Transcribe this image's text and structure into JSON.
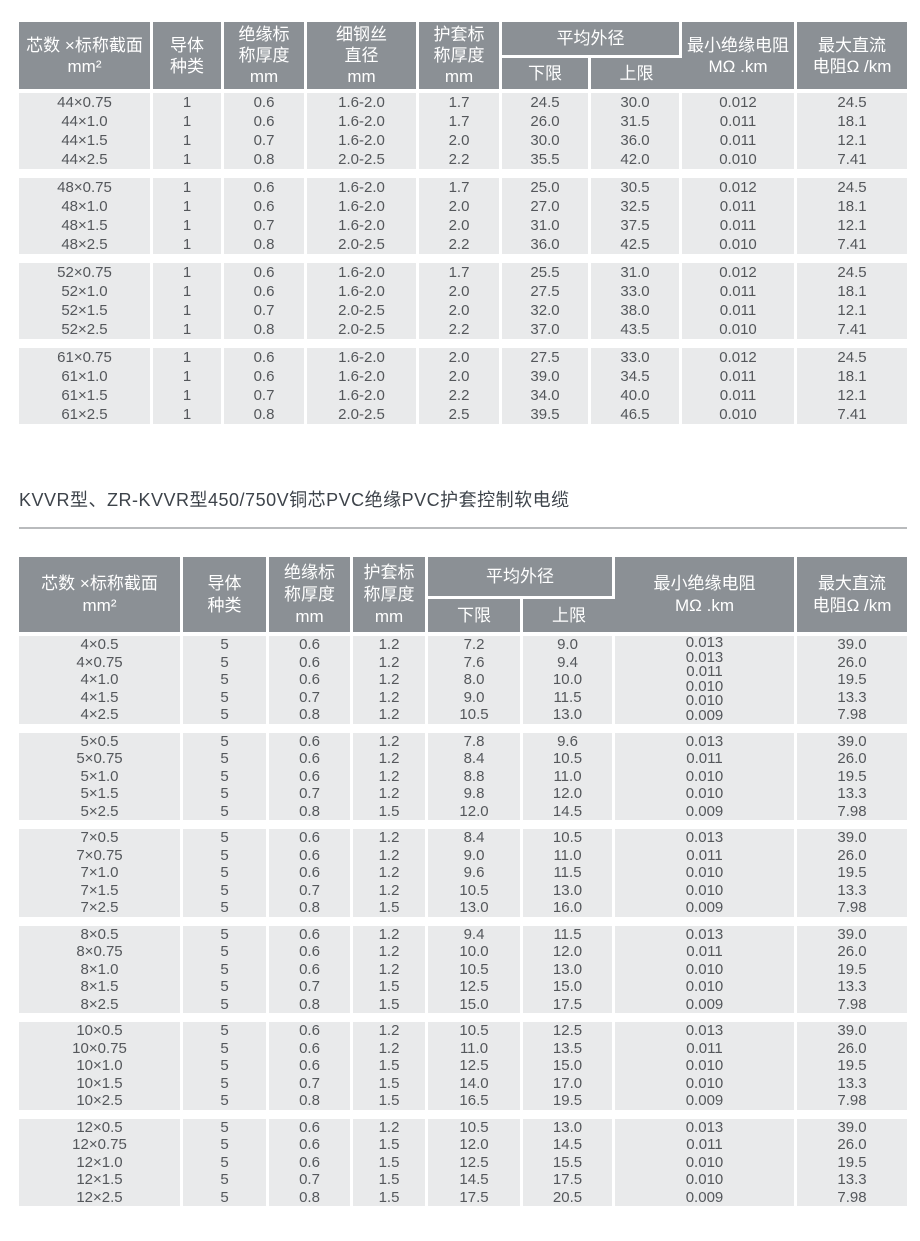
{
  "colors": {
    "header_bg": "#8b9095",
    "header_text": "#ffffff",
    "row_bg": "#e9eaeb",
    "row_text": "#54575b",
    "title_text": "#3d434a",
    "divider": "#b9bbbd",
    "page_bg": "#ffffff"
  },
  "section_title": "KVVR型、ZR-KVVR型450/750V铜芯PVC绝缘PVC护套控制软电缆",
  "table1": {
    "header": {
      "spec": "芯数 ×标称截面\nmm²",
      "conductor": "导体\n种类",
      "insulation_thickness": "绝缘标\n称厚度\nmm",
      "steel_wire": "细钢丝\n直径\nmm",
      "sheath_thickness": "护套标\n称厚度\nmm",
      "avg_od": "平均外径",
      "lower": "下限",
      "upper": "上限",
      "min_insulation": "最小绝缘电阻\nMΩ .km",
      "max_dc": "最大直流\n电阻Ω /km"
    },
    "groups": [
      {
        "rows": [
          [
            "44×0.75",
            "1",
            "0.6",
            "1.6-2.0",
            "1.7",
            "24.5",
            "30.0",
            "0.012",
            "24.5"
          ],
          [
            "44×1.0",
            "1",
            "0.6",
            "1.6-2.0",
            "1.7",
            "26.0",
            "31.5",
            "0.011",
            "18.1"
          ],
          [
            "44×1.5",
            "1",
            "0.7",
            "1.6-2.0",
            "2.0",
            "30.0",
            "36.0",
            "0.011",
            "12.1"
          ],
          [
            "44×2.5",
            "1",
            "0.8",
            "2.0-2.5",
            "2.2",
            "35.5",
            "42.0",
            "0.010",
            "7.41"
          ]
        ]
      },
      {
        "rows": [
          [
            "48×0.75",
            "1",
            "0.6",
            "1.6-2.0",
            "1.7",
            "25.0",
            "30.5",
            "0.012",
            "24.5"
          ],
          [
            "48×1.0",
            "1",
            "0.6",
            "1.6-2.0",
            "2.0",
            "27.0",
            "32.5",
            "0.011",
            "18.1"
          ],
          [
            "48×1.5",
            "1",
            "0.7",
            "1.6-2.0",
            "2.0",
            "31.0",
            "37.5",
            "0.011",
            "12.1"
          ],
          [
            "48×2.5",
            "1",
            "0.8",
            "2.0-2.5",
            "2.2",
            "36.0",
            "42.5",
            "0.010",
            "7.41"
          ]
        ]
      },
      {
        "rows": [
          [
            "52×0.75",
            "1",
            "0.6",
            "1.6-2.0",
            "1.7",
            "25.5",
            "31.0",
            "0.012",
            "24.5"
          ],
          [
            "52×1.0",
            "1",
            "0.6",
            "1.6-2.0",
            "2.0",
            "27.5",
            "33.0",
            "0.011",
            "18.1"
          ],
          [
            "52×1.5",
            "1",
            "0.7",
            "2.0-2.5",
            "2.0",
            "32.0",
            "38.0",
            "0.011",
            "12.1"
          ],
          [
            "52×2.5",
            "1",
            "0.8",
            "2.0-2.5",
            "2.2",
            "37.0",
            "43.5",
            "0.010",
            "7.41"
          ]
        ]
      },
      {
        "rows": [
          [
            "61×0.75",
            "1",
            "0.6",
            "1.6-2.0",
            "2.0",
            "27.5",
            "33.0",
            "0.012",
            "24.5"
          ],
          [
            "61×1.0",
            "1",
            "0.6",
            "1.6-2.0",
            "2.0",
            "39.0",
            "34.5",
            "0.011",
            "18.1"
          ],
          [
            "61×1.5",
            "1",
            "0.7",
            "1.6-2.0",
            "2.2",
            "34.0",
            "40.0",
            "0.011",
            "12.1"
          ],
          [
            "61×2.5",
            "1",
            "0.8",
            "2.0-2.5",
            "2.5",
            "39.5",
            "46.5",
            "0.010",
            "7.41"
          ]
        ]
      }
    ]
  },
  "table2": {
    "header": {
      "spec": "芯数 ×标称截面\nmm²",
      "conductor": "导体\n种类",
      "insulation_thickness": "绝缘标\n称厚度\nmm",
      "sheath_thickness": "护套标\n称厚度\nmm",
      "avg_od": "平均外径",
      "lower": "下限",
      "upper": "上限",
      "min_insulation": "最小绝缘电阻\nMΩ .km",
      "max_dc": "最大直流\n电阻Ω /km"
    },
    "groups": [
      {
        "overlap_col": 6,
        "overlap_values": [
          "0.013",
          "0.013",
          "0.011",
          "0.010",
          "0.010",
          "0.009"
        ],
        "rows": [
          [
            "4×0.5",
            "5",
            "0.6",
            "1.2",
            "7.2",
            "9.0",
            "39.0"
          ],
          [
            "4×0.75",
            "5",
            "0.6",
            "1.2",
            "7.6",
            "9.4",
            "26.0"
          ],
          [
            "4×1.0",
            "5",
            "0.6",
            "1.2",
            "8.0",
            "10.0",
            "19.5"
          ],
          [
            "4×1.5",
            "5",
            "0.7",
            "1.2",
            "9.0",
            "11.5",
            "13.3"
          ],
          [
            "4×2.5",
            "5",
            "0.8",
            "1.2",
            "10.5",
            "13.0",
            "7.98"
          ]
        ]
      },
      {
        "rows": [
          [
            "5×0.5",
            "5",
            "0.6",
            "1.2",
            "7.8",
            "9.6",
            "0.013",
            "39.0"
          ],
          [
            "5×0.75",
            "5",
            "0.6",
            "1.2",
            "8.4",
            "10.5",
            "0.011",
            "26.0"
          ],
          [
            "5×1.0",
            "5",
            "0.6",
            "1.2",
            "8.8",
            "11.0",
            "0.010",
            "19.5"
          ],
          [
            "5×1.5",
            "5",
            "0.7",
            "1.2",
            "9.8",
            "12.0",
            "0.010",
            "13.3"
          ],
          [
            "5×2.5",
            "5",
            "0.8",
            "1.5",
            "12.0",
            "14.5",
            "0.009",
            "7.98"
          ]
        ]
      },
      {
        "rows": [
          [
            "7×0.5",
            "5",
            "0.6",
            "1.2",
            "8.4",
            "10.5",
            "0.013",
            "39.0"
          ],
          [
            "7×0.75",
            "5",
            "0.6",
            "1.2",
            "9.0",
            "11.0",
            "0.011",
            "26.0"
          ],
          [
            "7×1.0",
            "5",
            "0.6",
            "1.2",
            "9.6",
            "11.5",
            "0.010",
            "19.5"
          ],
          [
            "7×1.5",
            "5",
            "0.7",
            "1.2",
            "10.5",
            "13.0",
            "0.010",
            "13.3"
          ],
          [
            "7×2.5",
            "5",
            "0.8",
            "1.5",
            "13.0",
            "16.0",
            "0.009",
            "7.98"
          ]
        ]
      },
      {
        "rows": [
          [
            "8×0.5",
            "5",
            "0.6",
            "1.2",
            "9.4",
            "11.5",
            "0.013",
            "39.0"
          ],
          [
            "8×0.75",
            "5",
            "0.6",
            "1.2",
            "10.0",
            "12.0",
            "0.011",
            "26.0"
          ],
          [
            "8×1.0",
            "5",
            "0.6",
            "1.2",
            "10.5",
            "13.0",
            "0.010",
            "19.5"
          ],
          [
            "8×1.5",
            "5",
            "0.7",
            "1.5",
            "12.5",
            "15.0",
            "0.010",
            "13.3"
          ],
          [
            "8×2.5",
            "5",
            "0.8",
            "1.5",
            "15.0",
            "17.5",
            "0.009",
            "7.98"
          ]
        ]
      },
      {
        "rows": [
          [
            "10×0.5",
            "5",
            "0.6",
            "1.2",
            "10.5",
            "12.5",
            "0.013",
            "39.0"
          ],
          [
            "10×0.75",
            "5",
            "0.6",
            "1.2",
            "11.0",
            "13.5",
            "0.011",
            "26.0"
          ],
          [
            "10×1.0",
            "5",
            "0.6",
            "1.5",
            "12.5",
            "15.0",
            "0.010",
            "19.5"
          ],
          [
            "10×1.5",
            "5",
            "0.7",
            "1.5",
            "14.0",
            "17.0",
            "0.010",
            "13.3"
          ],
          [
            "10×2.5",
            "5",
            "0.8",
            "1.5",
            "16.5",
            "19.5",
            "0.009",
            "7.98"
          ]
        ]
      },
      {
        "rows": [
          [
            "12×0.5",
            "5",
            "0.6",
            "1.2",
            "10.5",
            "13.0",
            "0.013",
            "39.0"
          ],
          [
            "12×0.75",
            "5",
            "0.6",
            "1.5",
            "12.0",
            "14.5",
            "0.011",
            "26.0"
          ],
          [
            "12×1.0",
            "5",
            "0.6",
            "1.5",
            "12.5",
            "15.5",
            "0.010",
            "19.5"
          ],
          [
            "12×1.5",
            "5",
            "0.7",
            "1.5",
            "14.5",
            "17.5",
            "0.010",
            "13.3"
          ],
          [
            "12×2.5",
            "5",
            "0.8",
            "1.5",
            "17.5",
            "20.5",
            "0.009",
            "7.98"
          ]
        ]
      }
    ]
  }
}
